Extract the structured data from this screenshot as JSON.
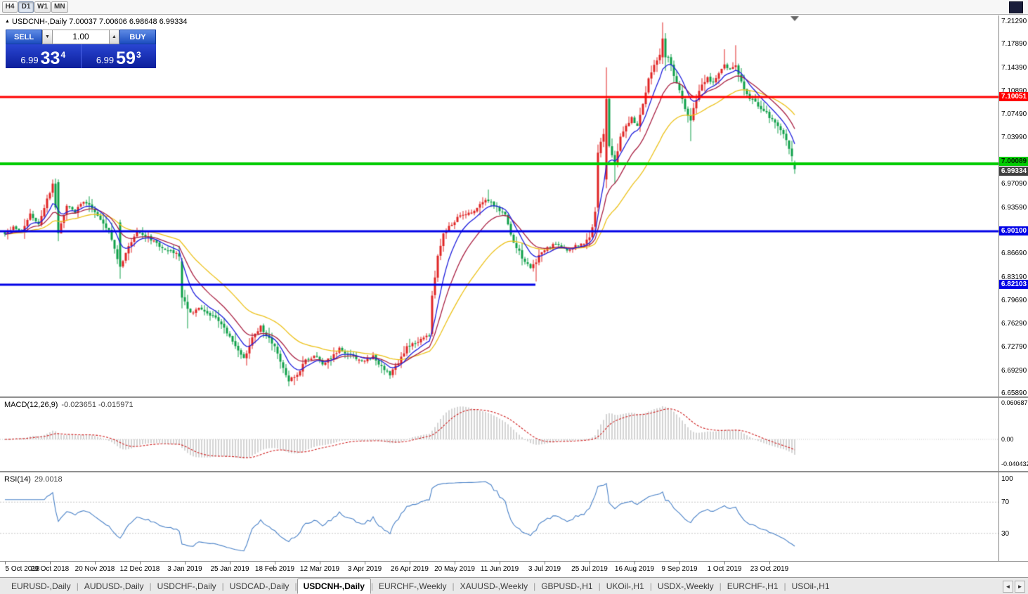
{
  "toolbar": {
    "timeframes": [
      {
        "label": "H4",
        "active": false
      },
      {
        "label": "D1",
        "active": true
      },
      {
        "label": "W1",
        "active": false
      },
      {
        "label": "MN",
        "active": false
      }
    ]
  },
  "chart": {
    "collapse_icon": "▲",
    "title": "USDCNH-,Daily 7.00037 7.00606 6.98648 6.99334"
  },
  "trade_panel": {
    "sell_label": "SELL",
    "buy_label": "BUY",
    "volume": "1.00",
    "spinner_down": "▼",
    "spinner_up": "▲",
    "sell_price": {
      "base": "6.99",
      "pips": "33",
      "frac": "4"
    },
    "buy_price": {
      "base": "6.99",
      "pips": "59",
      "frac": "3"
    }
  },
  "price_scale": {
    "ticks": [
      "7.21290",
      "7.17890",
      "7.14390",
      "7.10890",
      "7.07490",
      "7.03990",
      "7.00490",
      "6.97090",
      "6.93590",
      "6.90090",
      "6.86690",
      "6.83190",
      "6.79690",
      "6.76290",
      "6.72790",
      "6.69290",
      "6.65890"
    ],
    "levels": [
      {
        "price": 7.10051,
        "label": "7.10051",
        "line_color": "#ff0000",
        "line_width": 3,
        "box_bg": "#ff0000",
        "box_text": "#ffffff",
        "box_dy": -7
      },
      {
        "price": 7.00089,
        "label": "7.00089",
        "line_color": "#00cc00",
        "line_width": 4,
        "box_bg": "#00cc00",
        "box_text": "#002200",
        "box_dy": -10
      },
      {
        "price": 6.901,
        "label": "6.90100",
        "line_color": "#0000e6",
        "line_width": 3,
        "box_bg": "#0000e6",
        "box_text": "#ffffff",
        "box_dy": -7
      },
      {
        "price": 6.82103,
        "label": "6.82103",
        "line_color": "#0000e6",
        "line_width": 3,
        "box_bg": "#0000e6",
        "box_text": "#ffffff",
        "box_dy": -7,
        "x_end": 762
      }
    ],
    "current": {
      "price": 6.99334,
      "label": "6.99334",
      "box_bg": "#404040",
      "box_text": "#ffffff",
      "box_dy": -4
    }
  },
  "indicators": {
    "macd": {
      "label": "MACD(12,26,9)",
      "values": "-0.023651 -0.015971",
      "scale": [
        "0.060687",
        "0.00",
        "-0.040432"
      ]
    },
    "rsi": {
      "label": "RSI(14)",
      "value": "29.0018",
      "scale": [
        "100",
        "70",
        "30"
      ]
    }
  },
  "date_axis": {
    "labels": [
      {
        "text": "5 Oct 2018",
        "bar": 0
      },
      {
        "text": "29 Oct 2018",
        "bar": 16
      },
      {
        "text": "20 Nov 2018",
        "bar": 32
      },
      {
        "text": "12 Dec 2018",
        "bar": 48
      },
      {
        "text": "3 Jan 2019",
        "bar": 64
      },
      {
        "text": "25 Jan 2019",
        "bar": 80
      },
      {
        "text": "18 Feb 2019",
        "bar": 96
      },
      {
        "text": "12 Mar 2019",
        "bar": 112
      },
      {
        "text": "3 Apr 2019",
        "bar": 128
      },
      {
        "text": "26 Apr 2019",
        "bar": 144
      },
      {
        "text": "20 May 2019",
        "bar": 160
      },
      {
        "text": "11 Jun 2019",
        "bar": 176
      },
      {
        "text": "3 Jul 2019",
        "bar": 192
      },
      {
        "text": "25 Jul 2019",
        "bar": 208
      },
      {
        "text": "16 Aug 2019",
        "bar": 224
      },
      {
        "text": "9 Sep 2019",
        "bar": 240
      },
      {
        "text": "1 Oct 2019",
        "bar": 256
      },
      {
        "text": "23 Oct 2019",
        "bar": 272
      }
    ]
  },
  "tab_bar": {
    "nav_left": "◄",
    "nav_right": "►",
    "tabs": [
      {
        "label": "EURUSD-,Daily",
        "active": false
      },
      {
        "label": "AUDUSD-,Daily",
        "active": false
      },
      {
        "label": "USDCHF-,Daily",
        "active": false
      },
      {
        "label": "USDCAD-,Daily",
        "active": false
      },
      {
        "label": "USDCNH-,Daily",
        "active": true
      },
      {
        "label": "EURCHF-,Weekly",
        "active": false
      },
      {
        "label": "XAUUSD-,Weekly",
        "active": false
      },
      {
        "label": "GBPUSD-,H1",
        "active": false
      },
      {
        "label": "UKOil-,H1",
        "active": false
      },
      {
        "label": "USDX-,Weekly",
        "active": false
      },
      {
        "label": "EURCHF-,H1",
        "active": false
      },
      {
        "label": "USOil-,H1",
        "active": false
      }
    ]
  },
  "chart_data": {
    "type": "candlestick",
    "symbol": "USDCNH-",
    "timeframe": "Daily",
    "title": "USDCNH-,Daily",
    "ohlc": {
      "open": 7.00037,
      "high": 7.00606,
      "low": 6.98648,
      "close": 6.99334
    },
    "y_range": [
      6.6589,
      7.2129
    ],
    "bars_count": 282,
    "x_labels": [
      "5 Oct 2018",
      "29 Oct 2018",
      "20 Nov 2018",
      "12 Dec 2018",
      "3 Jan 2019",
      "25 Jan 2019",
      "18 Feb 2019",
      "12 Mar 2019",
      "3 Apr 2019",
      "26 Apr 2019",
      "20 May 2019",
      "11 Jun 2019",
      "3 Jul 2019",
      "25 Jul 2019",
      "16 Aug 2019",
      "9 Sep 2019",
      "1 Oct 2019",
      "23 Oct 2019"
    ],
    "horizontal_levels": [
      7.10051,
      7.00089,
      6.901,
      6.82103
    ],
    "candle_colors": {
      "up": "#e02525",
      "down": "#10a04a"
    },
    "moving_averages": [
      {
        "period": 8,
        "color": "#2020dd"
      },
      {
        "period": 16,
        "color": "#aa2143"
      },
      {
        "period": 34,
        "color": "#edc21a"
      }
    ],
    "close_anchors": [
      [
        0,
        6.895
      ],
      [
        3,
        6.908
      ],
      [
        6,
        6.9
      ],
      [
        9,
        6.925
      ],
      [
        12,
        6.912
      ],
      [
        15,
        6.948
      ],
      [
        17,
        6.972
      ],
      [
        19,
        6.898
      ],
      [
        22,
        6.938
      ],
      [
        25,
        6.93
      ],
      [
        28,
        6.946
      ],
      [
        31,
        6.936
      ],
      [
        34,
        6.916
      ],
      [
        37,
        6.9
      ],
      [
        41,
        6.848
      ],
      [
        44,
        6.878
      ],
      [
        47,
        6.902
      ],
      [
        50,
        6.894
      ],
      [
        53,
        6.886
      ],
      [
        56,
        6.876
      ],
      [
        59,
        6.872
      ],
      [
        62,
        6.864
      ],
      [
        63,
        6.802
      ],
      [
        66,
        6.778
      ],
      [
        69,
        6.788
      ],
      [
        72,
        6.778
      ],
      [
        75,
        6.772
      ],
      [
        78,
        6.756
      ],
      [
        81,
        6.738
      ],
      [
        85,
        6.71
      ],
      [
        88,
        6.744
      ],
      [
        91,
        6.758
      ],
      [
        94,
        6.742
      ],
      [
        96,
        6.728
      ],
      [
        98,
        6.705
      ],
      [
        101,
        6.678
      ],
      [
        104,
        6.688
      ],
      [
        107,
        6.708
      ],
      [
        110,
        6.716
      ],
      [
        113,
        6.704
      ],
      [
        116,
        6.712
      ],
      [
        119,
        6.726
      ],
      [
        122,
        6.718
      ],
      [
        125,
        6.712
      ],
      [
        128,
        6.708
      ],
      [
        131,
        6.714
      ],
      [
        134,
        6.698
      ],
      [
        137,
        6.688
      ],
      [
        140,
        6.706
      ],
      [
        143,
        6.728
      ],
      [
        146,
        6.736
      ],
      [
        149,
        6.742
      ],
      [
        151,
        6.746
      ],
      [
        152,
        6.805
      ],
      [
        154,
        6.862
      ],
      [
        156,
        6.896
      ],
      [
        158,
        6.908
      ],
      [
        161,
        6.92
      ],
      [
        164,
        6.928
      ],
      [
        167,
        6.93
      ],
      [
        170,
        6.944
      ],
      [
        172,
        6.948
      ],
      [
        175,
        6.936
      ],
      [
        178,
        6.924
      ],
      [
        181,
        6.885
      ],
      [
        184,
        6.862
      ],
      [
        187,
        6.846
      ],
      [
        189,
        6.856
      ],
      [
        191,
        6.872
      ],
      [
        194,
        6.878
      ],
      [
        197,
        6.882
      ],
      [
        200,
        6.874
      ],
      [
        203,
        6.878
      ],
      [
        206,
        6.884
      ],
      [
        208,
        6.89
      ],
      [
        210,
        6.928
      ],
      [
        211,
        7.018
      ],
      [
        213,
        7.048
      ],
      [
        215,
        7.03
      ],
      [
        217,
        6.998
      ],
      [
        219,
        7.04
      ],
      [
        221,
        7.056
      ],
      [
        223,
        7.07
      ],
      [
        225,
        7.056
      ],
      [
        227,
        7.092
      ],
      [
        229,
        7.128
      ],
      [
        231,
        7.148
      ],
      [
        233,
        7.162
      ],
      [
        234,
        7.188
      ],
      [
        236,
        7.162
      ],
      [
        238,
        7.134
      ],
      [
        240,
        7.112
      ],
      [
        242,
        7.082
      ],
      [
        244,
        7.066
      ],
      [
        246,
        7.098
      ],
      [
        248,
        7.118
      ],
      [
        250,
        7.128
      ],
      [
        252,
        7.122
      ],
      [
        254,
        7.138
      ],
      [
        256,
        7.148
      ],
      [
        258,
        7.142
      ],
      [
        260,
        7.148
      ],
      [
        262,
        7.124
      ],
      [
        264,
        7.104
      ],
      [
        266,
        7.096
      ],
      [
        268,
        7.088
      ],
      [
        271,
        7.076
      ],
      [
        274,
        7.062
      ],
      [
        276,
        7.052
      ],
      [
        278,
        7.038
      ],
      [
        280,
        7.012
      ],
      [
        281,
        6.99334
      ]
    ],
    "special_bars": [
      {
        "i": 19,
        "o": 6.974,
        "h": 6.978,
        "l": 6.886,
        "c": 6.898
      },
      {
        "i": 41,
        "o": 6.914,
        "h": 6.918,
        "l": 6.83,
        "c": 6.848
      },
      {
        "i": 63,
        "o": 6.856,
        "h": 6.861,
        "l": 6.786,
        "c": 6.802
      },
      {
        "i": 65,
        "l": 6.756
      },
      {
        "i": 101,
        "l": 6.67
      },
      {
        "i": 137,
        "l": 6.681
      },
      {
        "i": 152,
        "o": 6.748,
        "h": 6.812,
        "l": 6.744,
        "c": 6.805
      },
      {
        "i": 172,
        "h": 6.963
      },
      {
        "i": 189,
        "l": 6.826
      },
      {
        "i": 211,
        "o": 6.936,
        "h": 7.03,
        "l": 6.93,
        "c": 7.018
      },
      {
        "i": 214,
        "o": 6.978,
        "h": 7.145,
        "l": 6.965,
        "c": 7.098
      },
      {
        "i": 217,
        "l": 6.972
      },
      {
        "i": 234,
        "o": 7.16,
        "h": 7.212,
        "l": 7.15,
        "c": 7.188
      },
      {
        "i": 235,
        "o": 7.188,
        "h": 7.196,
        "l": 7.14,
        "c": 7.16
      },
      {
        "i": 244,
        "l": 7.035
      },
      {
        "i": 256,
        "h": 7.172
      },
      {
        "i": 260,
        "h": 7.178
      },
      {
        "i": 281,
        "o": 7.00037,
        "h": 7.00606,
        "l": 6.98648,
        "c": 6.99334
      }
    ],
    "indicator_panels": [
      {
        "type": "macd",
        "params": [
          12,
          26,
          9
        ],
        "current": [
          -0.023651,
          -0.015971
        ],
        "scale": [
          0.060687,
          0.0,
          -0.040432
        ],
        "histogram_color": "#aaaaaa",
        "signal_color": "#d02020"
      },
      {
        "type": "rsi",
        "params": [
          14
        ],
        "current": 29.0018,
        "levels": [
          70,
          30
        ],
        "line_color": "#4a82c8"
      }
    ]
  }
}
